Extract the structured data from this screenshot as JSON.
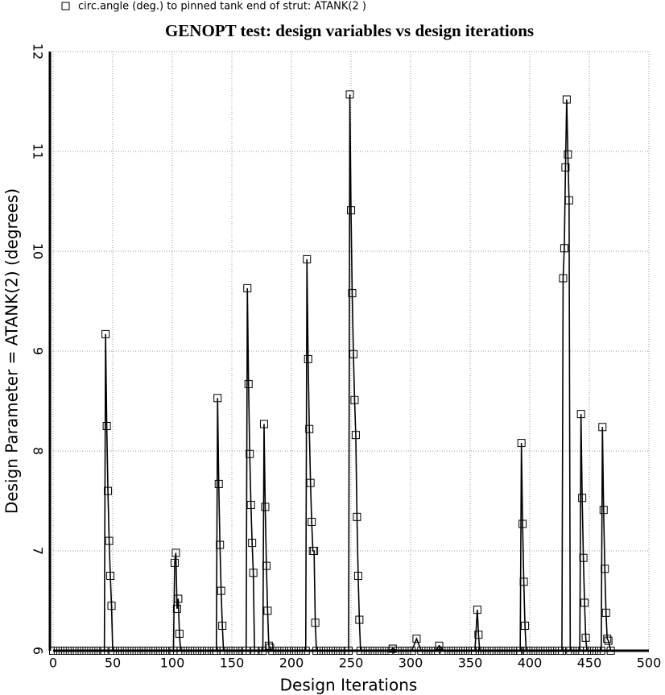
{
  "chart_data": {
    "type": "line",
    "title": "GENOPT test: design variables vs design iterations",
    "xlabel": "Design Iterations",
    "ylabel": "Design Parameter = ATANK(2) (degrees)",
    "xlim": [
      0,
      500
    ],
    "ylim": [
      6,
      12
    ],
    "xticks": [
      0,
      50,
      100,
      150,
      200,
      250,
      300,
      350,
      400,
      450,
      500
    ],
    "yticks": [
      6,
      7,
      8,
      9,
      10,
      11,
      12
    ],
    "grid": true,
    "series": [
      {
        "name": "circ.angle (deg.) to pinned tank end of strut: ATANK(2 )",
        "color": "#000000",
        "marker": "square",
        "x": [
          0,
          4,
          8,
          12,
          16,
          20,
          24,
          28,
          32,
          36,
          40,
          43,
          44,
          45,
          46,
          47,
          48,
          49,
          50,
          54,
          58,
          62,
          66,
          70,
          74,
          78,
          82,
          86,
          90,
          94,
          98,
          101,
          102,
          103,
          104,
          105,
          106,
          107,
          111,
          115,
          119,
          123,
          127,
          131,
          135,
          137,
          138,
          139,
          140,
          141,
          142,
          143,
          147,
          151,
          155,
          159,
          162,
          163,
          164,
          165,
          166,
          167,
          168,
          169,
          172,
          176,
          177,
          178,
          179,
          180,
          181,
          182,
          184,
          188,
          192,
          196,
          200,
          204,
          208,
          212,
          213,
          214,
          215,
          216,
          217,
          218,
          219,
          220,
          221,
          225,
          229,
          233,
          237,
          241,
          245,
          248,
          249,
          250,
          251,
          252,
          253,
          254,
          255,
          256,
          257,
          258,
          262,
          266,
          270,
          274,
          278,
          282,
          285,
          289,
          293,
          297,
          301,
          305,
          309,
          313,
          317,
          321,
          324,
          328,
          332,
          336,
          340,
          344,
          348,
          352,
          354,
          356,
          357,
          358,
          362,
          366,
          370,
          374,
          378,
          382,
          386,
          390,
          392,
          393,
          394,
          395,
          396,
          397,
          401,
          405,
          409,
          413,
          417,
          421,
          425,
          427,
          428,
          429,
          430,
          431,
          432,
          433,
          434,
          438,
          442,
          443,
          444,
          445,
          446,
          447,
          448,
          452,
          456,
          460,
          461,
          462,
          463,
          464,
          465,
          466,
          468
        ],
        "values": [
          6,
          6,
          6,
          6,
          6,
          6,
          6,
          6,
          6,
          6,
          6,
          6,
          9.17,
          8.25,
          7.6,
          7.1,
          6.75,
          6.45,
          6,
          6,
          6,
          6,
          6,
          6,
          6,
          6,
          6,
          6,
          6,
          6,
          6,
          6,
          6.88,
          6.98,
          6.42,
          6.52,
          6.17,
          6,
          6,
          6,
          6,
          6,
          6,
          6,
          6,
          6,
          8.53,
          7.67,
          7.06,
          6.6,
          6.25,
          6,
          6,
          6,
          6,
          6,
          6,
          9.63,
          8.67,
          7.97,
          7.46,
          7.08,
          6.78,
          6,
          6,
          6,
          8.27,
          7.44,
          6.85,
          6.4,
          6.05,
          6.03,
          6,
          6,
          6,
          6,
          6,
          6,
          6,
          6,
          9.92,
          8.92,
          8.22,
          7.68,
          7.29,
          7,
          7,
          6.28,
          6,
          6,
          6,
          6,
          6,
          6,
          6,
          6,
          11.57,
          10.41,
          9.58,
          8.97,
          8.51,
          8.16,
          7.34,
          6.75,
          6.31,
          6,
          6,
          6,
          6,
          6,
          6,
          6,
          6.02,
          6,
          6,
          6,
          6,
          6.12,
          6,
          6,
          6,
          6,
          6.05,
          6,
          6,
          6,
          6,
          6,
          6,
          6,
          6,
          6.41,
          6.16,
          6,
          6,
          6,
          6,
          6,
          6,
          6,
          6,
          6,
          6,
          8.08,
          7.27,
          6.69,
          6.25,
          6,
          6,
          6,
          6,
          6,
          6,
          6,
          6,
          6,
          9.73,
          10.03,
          10.84,
          11.52,
          10.97,
          10.51,
          6,
          6,
          6,
          8.37,
          7.53,
          6.93,
          6.48,
          6.13,
          6,
          6,
          6,
          6,
          8.24,
          7.41,
          6.82,
          6.38,
          6.12,
          6.1,
          6
        ]
      }
    ]
  }
}
